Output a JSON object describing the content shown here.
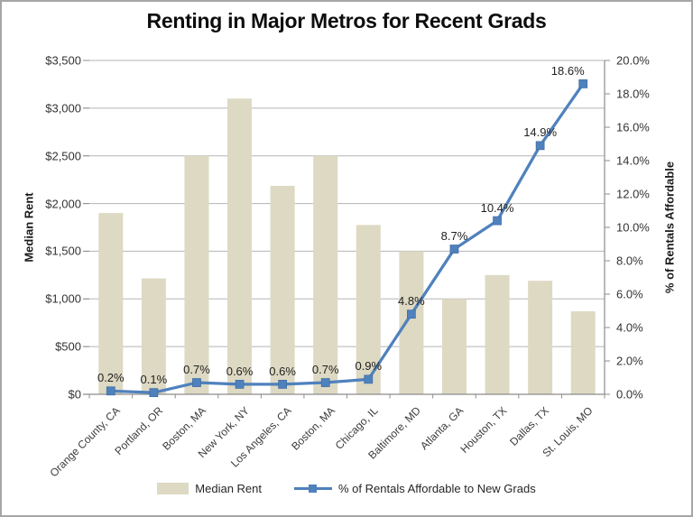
{
  "title": "Renting in Major Metros for Recent Grads",
  "colors": {
    "bar_fill": "#DDD9C3",
    "line_stroke": "#4F81BD",
    "gridline": "#b5b5b5",
    "axis_line": "#8C8C8C"
  },
  "chart_data": {
    "type": "bar",
    "subtype": "combo bar + line, dual axis",
    "title": "Renting in Major Metros for Recent Grads",
    "categories": [
      "Orange County, CA",
      "Portland, OR",
      "Boston, MA",
      "New York, NY",
      "Los Angeles, CA",
      "Boston, MA",
      "Chicago, IL",
      "Baltimore, MD",
      "Atlanta, GA",
      "Houston, TX",
      "Dallas, TX",
      "St. Louis, MO"
    ],
    "series": [
      {
        "name": "Median Rent",
        "type": "bar",
        "axis": "left",
        "color": "#DDD9C3",
        "values": [
          1900,
          1215,
          2500,
          3100,
          2185,
          2500,
          1775,
          1500,
          1000,
          1250,
          1190,
          870
        ]
      },
      {
        "name": "% of Rentals Affordable to New Grads",
        "type": "line",
        "axis": "right",
        "color": "#4F81BD",
        "values": [
          0.2,
          0.1,
          0.7,
          0.6,
          0.6,
          0.7,
          0.9,
          4.8,
          8.7,
          10.4,
          14.9,
          18.6
        ],
        "point_labels": [
          "0.2%",
          "0.1%",
          "0.7%",
          "0.6%",
          "0.6%",
          "0.7%",
          "0.9%",
          "4.8%",
          "8.7%",
          "10.4%",
          "14.9%",
          "18.6%"
        ]
      }
    ],
    "left_axis": {
      "title": "Median Rent",
      "range": [
        0,
        3500
      ],
      "tick_labels": [
        "$0",
        "$500",
        "$1,000",
        "$1,500",
        "$2,000",
        "$2,500",
        "$3,000",
        "$3,500"
      ]
    },
    "right_axis": {
      "title": "% of Rentals Affordable",
      "range": [
        0,
        20
      ],
      "tick_labels": [
        "0.0%",
        "2.0%",
        "4.0%",
        "6.0%",
        "8.0%",
        "10.0%",
        "12.0%",
        "14.0%",
        "16.0%",
        "18.0%",
        "20.0%"
      ]
    },
    "legend": {
      "position": "bottom",
      "entries": [
        "Median Rent",
        "% of Rentals Affordable to New Grads"
      ]
    },
    "grid": "horizontal gridlines on"
  }
}
